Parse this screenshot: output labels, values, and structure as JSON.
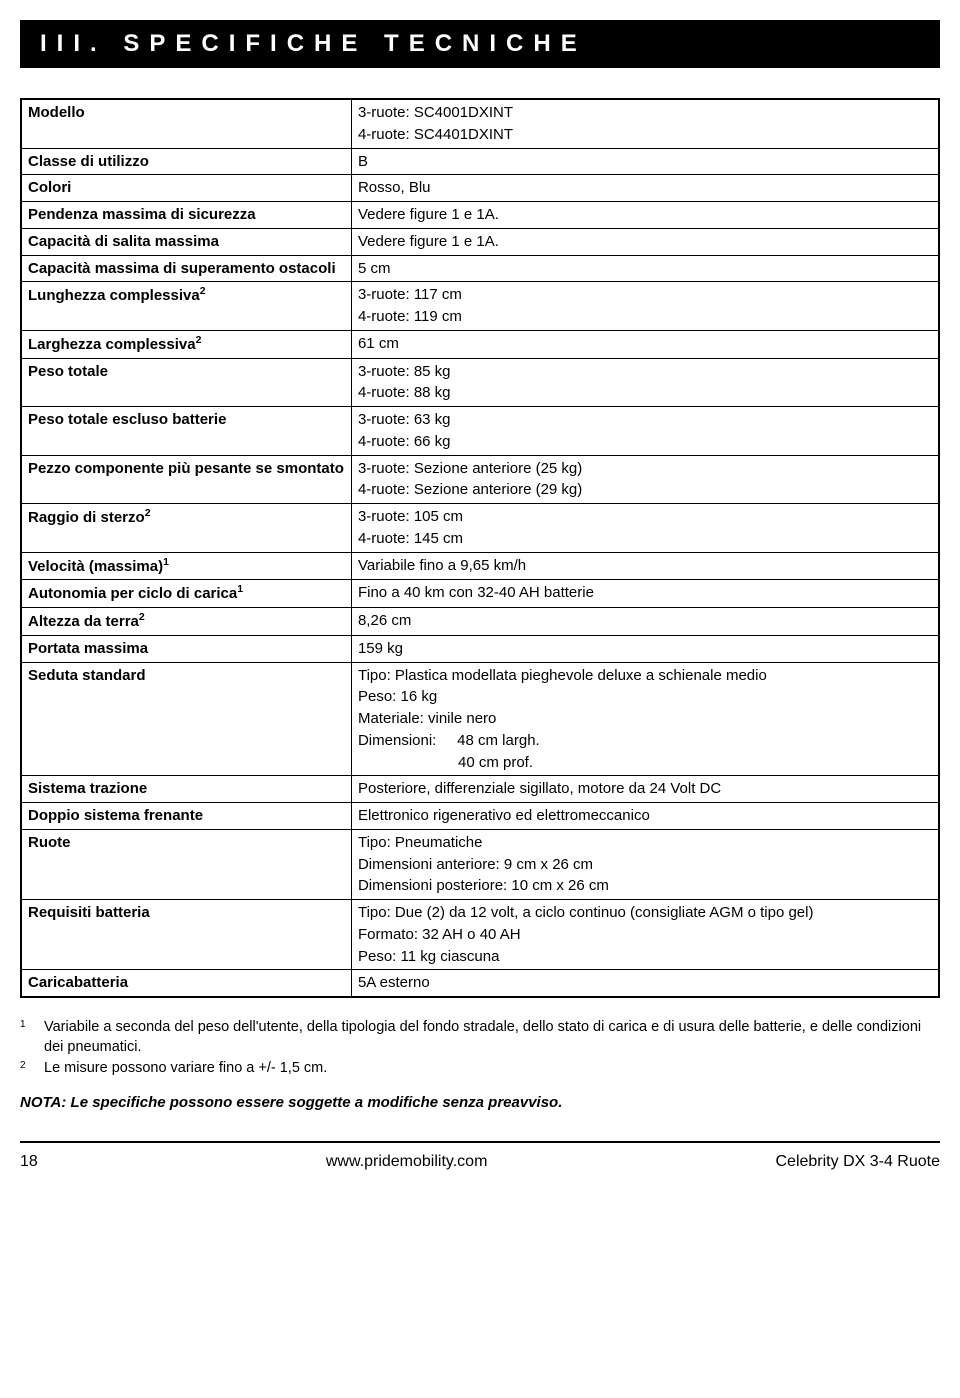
{
  "header": {
    "title": "III. SPECIFICHE TECNICHE"
  },
  "table": {
    "rows": [
      {
        "label": "Modello",
        "value_lines": [
          "3-ruote: SC4001DXINT",
          "4-ruote: SC4401DXINT"
        ]
      },
      {
        "label": "Classe di utilizzo",
        "value_lines": [
          "B"
        ]
      },
      {
        "label": "Colori",
        "value_lines": [
          "Rosso, Blu"
        ]
      },
      {
        "label": "Pendenza massima di sicurezza",
        "value_lines": [
          "Vedere figure 1 e 1A."
        ]
      },
      {
        "label": "Capacità di salita massima",
        "value_lines": [
          "Vedere figure 1 e 1A."
        ]
      },
      {
        "label": "Capacità massima di superamento ostacoli",
        "value_lines": [
          "5 cm"
        ]
      },
      {
        "label": "Lunghezza complessiva",
        "label_sup": "2",
        "value_lines": [
          "3-ruote: 117 cm",
          "4-ruote: 119 cm"
        ]
      },
      {
        "label": "Larghezza complessiva",
        "label_sup": "2",
        "value_lines": [
          "61 cm"
        ]
      },
      {
        "label": "Peso totale",
        "value_lines": [
          "3-ruote: 85 kg",
          "4-ruote: 88 kg"
        ]
      },
      {
        "label": "Peso totale escluso batterie",
        "value_lines": [
          "3-ruote: 63 kg",
          "4-ruote: 66 kg"
        ]
      },
      {
        "label": "Pezzo componente più pesante se smontato",
        "value_lines": [
          "3-ruote: Sezione anteriore (25 kg)",
          "4-ruote: Sezione anteriore (29 kg)"
        ]
      },
      {
        "label": "Raggio di sterzo",
        "label_sup": "2",
        "value_lines": [
          "3-ruote: 105 cm",
          "4-ruote: 145 cm"
        ]
      },
      {
        "label": "Velocità (massima)",
        "label_sup": "1",
        "value_lines": [
          "Variabile fino a 9,65 km/h"
        ]
      },
      {
        "label": "Autonomia per ciclo di carica",
        "label_sup": "1",
        "value_lines": [
          "Fino a 40 km con 32-40 AH batterie"
        ]
      },
      {
        "label": "Altezza da terra",
        "label_sup": "2",
        "value_lines": [
          "8,26 cm"
        ]
      },
      {
        "label": "Portata massima",
        "value_lines": [
          "159 kg"
        ]
      },
      {
        "label": "Seduta standard",
        "value_lines": [
          "Tipo: Plastica modellata pieghevole deluxe a schienale medio",
          "Peso: 16 kg",
          "Materiale: vinile nero",
          "Dimensioni:     48 cm largh.",
          "                        40 cm prof."
        ]
      },
      {
        "label": "Sistema trazione",
        "value_lines": [
          "Posteriore, differenziale sigillato, motore da 24 Volt DC"
        ]
      },
      {
        "label": "Doppio sistema frenante",
        "value_lines": [
          "Elettronico rigenerativo ed elettromeccanico"
        ]
      },
      {
        "label": "Ruote",
        "value_lines": [
          "Tipo: Pneumatiche",
          "Dimensioni anteriore: 9 cm x 26 cm",
          "Dimensioni posteriore: 10 cm x 26 cm"
        ]
      },
      {
        "label": "Requisiti batteria",
        "value_lines": [
          "Tipo: Due (2) da 12 volt, a ciclo continuo (consigliate AGM o tipo gel)",
          "Formato: 32 AH o 40 AH",
          "Peso: 11 kg ciascuna"
        ]
      },
      {
        "label": "Caricabatteria",
        "value_lines": [
          "5A esterno"
        ]
      }
    ]
  },
  "footnotes": [
    {
      "num": "1",
      "text": "Variabile a seconda del peso dell'utente, della tipologia del fondo stradale, dello stato di carica e di usura delle batterie, e delle condizioni dei pneumatici."
    },
    {
      "num": "2",
      "text": "Le misure possono variare fino a +/- 1,5 cm."
    }
  ],
  "nota": "NOTA: Le specifiche possono essere soggette a modifiche senza preavviso.",
  "footer": {
    "page": "18",
    "url": "www.pridemobility.com",
    "model": "Celebrity DX 3-4 Ruote"
  },
  "style": {
    "header_bg": "#000000",
    "header_fg": "#ffffff",
    "table_border": "#000000",
    "body_bg": "#ffffff",
    "text_color": "#000000",
    "header_fontsize": 24,
    "body_fontsize": 15,
    "label_col_width_pct": 36
  }
}
